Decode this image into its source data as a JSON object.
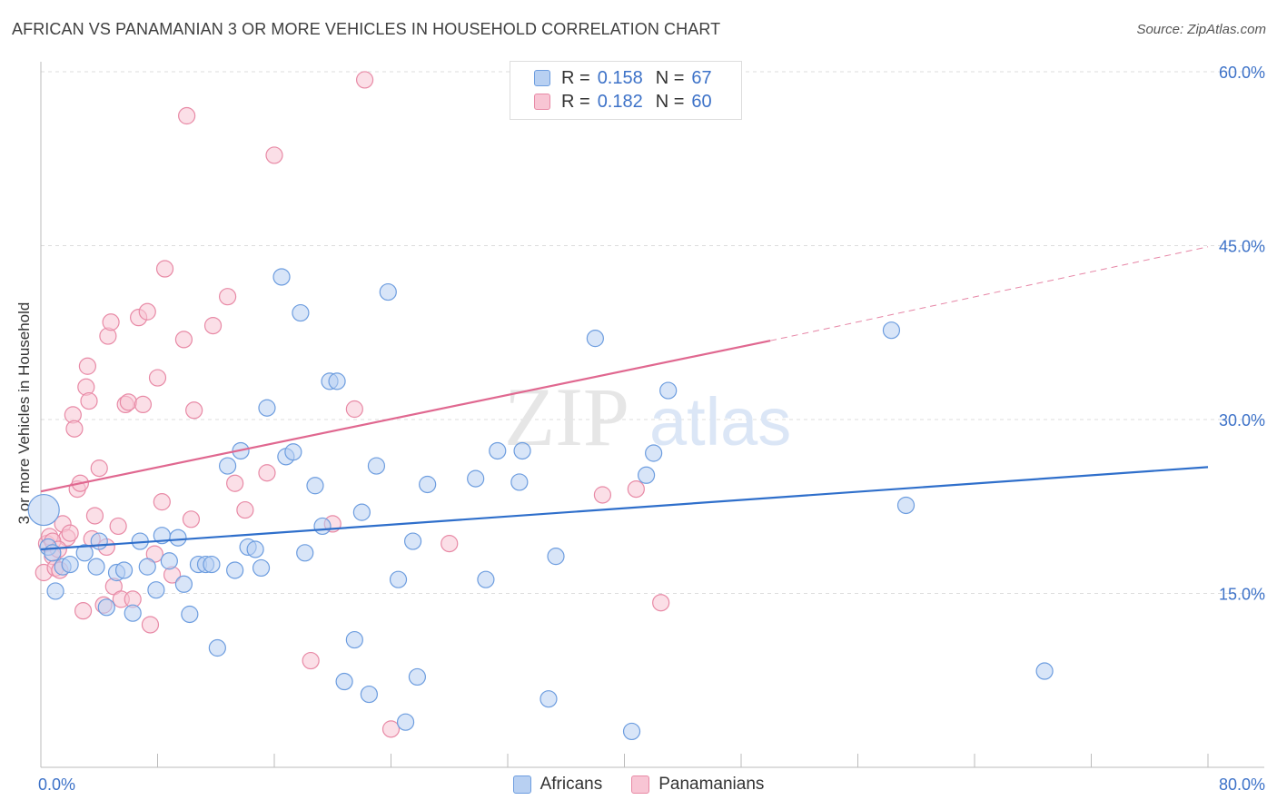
{
  "colors": {
    "africans_fill": "#b8d0f2",
    "africans_stroke": "#6d9ddf",
    "africans_line": "#2f6fcb",
    "panamanians_fill": "#f8c5d4",
    "panamanians_stroke": "#e88aa6",
    "panamanians_line": "#e06890",
    "tick_label": "#3d72c8",
    "grid": "#dddddd"
  },
  "stats": {
    "africans": {
      "r_label": "R =",
      "r_value": "0.158",
      "n_label": "N =",
      "n_value": "67"
    },
    "panamanians": {
      "r_label": "R =",
      "r_value": "0.182",
      "n_label": "N =",
      "n_value": "60"
    }
  },
  "watermark": {
    "part1": "ZIP",
    "part2": "atlas"
  },
  "chart_data": {
    "type": "scatter",
    "title": "AFRICAN VS PANAMANIAN 3 OR MORE VEHICLES IN HOUSEHOLD CORRELATION CHART",
    "source": "Source: ZipAtlas.com",
    "xlabel": "",
    "ylabel": "3 or more Vehicles in Household",
    "xlim": [
      0,
      80
    ],
    "ylim": [
      0,
      60
    ],
    "x_tick_labels": [
      {
        "value": 0,
        "label": "0.0%"
      },
      {
        "value": 80,
        "label": "80.0%"
      }
    ],
    "y_tick_labels": [
      {
        "value": 15,
        "label": "15.0%"
      },
      {
        "value": 30,
        "label": "30.0%"
      },
      {
        "value": 45,
        "label": "45.0%"
      },
      {
        "value": 60,
        "label": "60.0%"
      }
    ],
    "x_minor_ticks": [
      0,
      8,
      16,
      24,
      32,
      40,
      48,
      56,
      64,
      72,
      80
    ],
    "legend": [
      "Africans",
      "Panamanians"
    ],
    "legend_position": "bottom",
    "series": [
      {
        "name": "Africans",
        "points": [
          [
            0.2,
            22.2,
            "large"
          ],
          [
            0.5,
            19.0
          ],
          [
            0.8,
            18.5
          ],
          [
            1.0,
            15.2
          ],
          [
            1.5,
            17.3
          ],
          [
            2.0,
            17.5
          ],
          [
            3.0,
            18.5
          ],
          [
            3.8,
            17.3
          ],
          [
            4.0,
            19.5
          ],
          [
            4.5,
            13.8
          ],
          [
            5.2,
            16.8
          ],
          [
            5.7,
            17.0
          ],
          [
            6.3,
            13.3
          ],
          [
            6.8,
            19.5
          ],
          [
            7.3,
            17.3
          ],
          [
            7.9,
            15.3
          ],
          [
            8.3,
            20.0
          ],
          [
            8.8,
            17.8
          ],
          [
            9.4,
            19.8
          ],
          [
            9.8,
            15.8
          ],
          [
            10.2,
            13.2
          ],
          [
            10.8,
            17.5
          ],
          [
            11.3,
            17.5
          ],
          [
            11.7,
            17.5
          ],
          [
            12.1,
            10.3
          ],
          [
            12.8,
            26.0
          ],
          [
            13.3,
            17.0
          ],
          [
            13.7,
            27.3
          ],
          [
            14.2,
            19.0
          ],
          [
            14.7,
            18.8
          ],
          [
            15.1,
            17.2
          ],
          [
            15.5,
            31.0
          ],
          [
            16.5,
            42.3
          ],
          [
            16.8,
            26.8
          ],
          [
            17.3,
            27.2
          ],
          [
            17.8,
            39.2
          ],
          [
            18.1,
            18.5
          ],
          [
            18.8,
            24.3
          ],
          [
            19.3,
            20.8
          ],
          [
            19.8,
            33.3
          ],
          [
            20.3,
            33.3
          ],
          [
            20.8,
            7.4
          ],
          [
            21.5,
            11.0
          ],
          [
            22.0,
            22.0
          ],
          [
            22.5,
            6.3
          ],
          [
            23.0,
            26.0
          ],
          [
            23.8,
            41.0
          ],
          [
            24.5,
            16.2
          ],
          [
            25.0,
            3.9
          ],
          [
            25.5,
            19.5
          ],
          [
            25.8,
            7.8
          ],
          [
            26.5,
            24.4
          ],
          [
            29.8,
            24.9
          ],
          [
            30.5,
            16.2
          ],
          [
            31.3,
            27.3
          ],
          [
            32.8,
            24.6
          ],
          [
            33.0,
            27.3
          ],
          [
            34.8,
            5.9
          ],
          [
            35.3,
            18.2
          ],
          [
            38.0,
            37.0
          ],
          [
            40.5,
            3.1
          ],
          [
            41.5,
            25.2
          ],
          [
            42.0,
            27.1
          ],
          [
            43.0,
            32.5
          ],
          [
            58.3,
            37.7
          ],
          [
            59.3,
            22.6
          ],
          [
            68.8,
            8.3
          ]
        ]
      },
      {
        "name": "Panamanians",
        "points": [
          [
            0.2,
            16.8
          ],
          [
            0.4,
            19.3
          ],
          [
            0.6,
            19.9
          ],
          [
            0.8,
            18.2
          ],
          [
            1.0,
            17.2
          ],
          [
            1.3,
            17.0
          ],
          [
            1.5,
            21.0
          ],
          [
            1.8,
            19.8
          ],
          [
            2.0,
            20.2
          ],
          [
            2.2,
            30.4
          ],
          [
            2.3,
            29.2
          ],
          [
            2.5,
            24.0
          ],
          [
            2.7,
            24.5
          ],
          [
            2.9,
            13.5
          ],
          [
            3.1,
            32.8
          ],
          [
            3.2,
            34.6
          ],
          [
            3.3,
            31.6
          ],
          [
            3.5,
            19.7
          ],
          [
            3.7,
            21.7
          ],
          [
            4.0,
            25.8
          ],
          [
            4.3,
            14.0
          ],
          [
            4.5,
            19.0
          ],
          [
            4.6,
            37.2
          ],
          [
            4.8,
            38.4
          ],
          [
            5.0,
            15.6
          ],
          [
            5.3,
            20.8
          ],
          [
            5.5,
            14.5
          ],
          [
            5.8,
            31.3
          ],
          [
            6.0,
            31.5
          ],
          [
            6.3,
            14.5
          ],
          [
            6.7,
            38.8
          ],
          [
            7.0,
            31.3
          ],
          [
            7.3,
            39.3
          ],
          [
            7.5,
            12.3
          ],
          [
            7.8,
            18.4
          ],
          [
            8.0,
            33.6
          ],
          [
            8.3,
            22.9
          ],
          [
            8.5,
            43.0
          ],
          [
            9.0,
            16.6
          ],
          [
            9.8,
            36.9
          ],
          [
            10.0,
            56.2
          ],
          [
            10.3,
            21.4
          ],
          [
            10.5,
            30.8
          ],
          [
            11.8,
            38.1
          ],
          [
            12.8,
            40.6
          ],
          [
            13.3,
            24.5
          ],
          [
            14.0,
            22.2
          ],
          [
            15.5,
            25.4
          ],
          [
            16.0,
            52.8
          ],
          [
            18.5,
            9.2
          ],
          [
            20.0,
            21.0
          ],
          [
            21.5,
            30.9
          ],
          [
            22.2,
            59.3
          ],
          [
            24.0,
            3.3
          ],
          [
            28.0,
            19.3
          ],
          [
            38.5,
            23.5
          ],
          [
            40.8,
            24.0
          ],
          [
            42.5,
            14.2
          ],
          [
            0.8,
            19.5
          ],
          [
            1.2,
            18.8
          ]
        ]
      }
    ],
    "trend_lines": [
      {
        "series": "Africans",
        "x": [
          0,
          80
        ],
        "y": [
          18.8,
          25.9
        ],
        "style": "solid"
      },
      {
        "series": "Panamanians",
        "x": [
          0,
          50
        ],
        "y": [
          23.8,
          36.8
        ],
        "style": "solid"
      },
      {
        "series": "Panamanians",
        "x": [
          50,
          80
        ],
        "y": [
          36.8,
          44.9
        ],
        "style": "dashed"
      }
    ]
  }
}
